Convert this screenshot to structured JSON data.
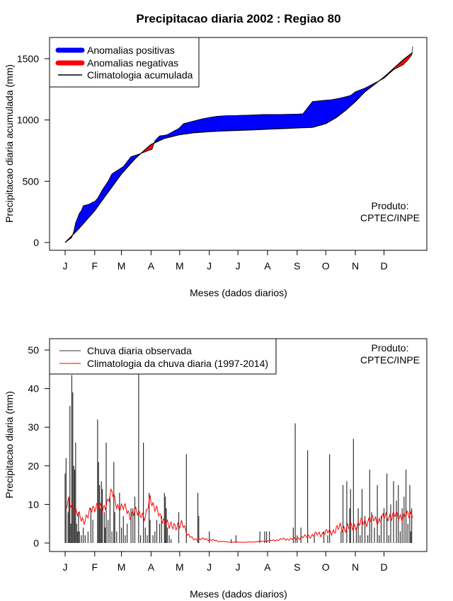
{
  "title": "Precipitacao diaria 2002 : Regiao 80",
  "colors": {
    "positive": "#0000FF",
    "negative": "#FF0000",
    "climatology_line": "#000000",
    "observed_bars": "#333333",
    "clim_daily": "#FF0000"
  },
  "chart_data": [
    {
      "type": "area",
      "name": "cumulative",
      "title": "Precipitacao diaria 2002 : Regiao 80",
      "xlabel": "Meses (dados diarios)",
      "ylabel": "Precipitacao diaria acumulada (mm)",
      "xlim": [
        1,
        365
      ],
      "ylim": [
        0,
        1600
      ],
      "yticks": [
        0,
        500,
        1000,
        1500
      ],
      "month_labels": [
        "J",
        "F",
        "M",
        "A",
        "M",
        "J",
        "J",
        "A",
        "S",
        "O",
        "N",
        "D"
      ],
      "month_positions": [
        1,
        32,
        60,
        91,
        121,
        152,
        182,
        213,
        244,
        274,
        305,
        335
      ],
      "legend": [
        "Anomalias positivas",
        "Anomalias negativas",
        "Climatologia acumulada"
      ],
      "annotation": [
        "Produto:",
        "CPTEC/INPE"
      ],
      "series": [
        {
          "name": "Climatologia acumulada",
          "x": [
            1,
            15,
            32,
            45,
            60,
            75,
            91,
            105,
            121,
            135,
            152,
            165,
            182,
            200,
            213,
            230,
            244,
            260,
            274,
            285,
            295,
            305,
            315,
            325,
            335,
            345,
            355,
            365
          ],
          "values": [
            0,
            110,
            260,
            400,
            560,
            690,
            800,
            850,
            880,
            895,
            905,
            910,
            915,
            920,
            925,
            930,
            935,
            940,
            970,
            1020,
            1080,
            1150,
            1230,
            1290,
            1350,
            1420,
            1490,
            1550
          ]
        },
        {
          "name": "Acumulado observado 2002",
          "x": [
            1,
            8,
            10,
            12,
            16,
            18,
            20,
            25,
            28,
            30,
            32,
            35,
            40,
            46,
            50,
            58,
            62,
            66,
            70,
            78,
            85,
            88,
            92,
            95,
            100,
            105,
            108,
            115,
            120,
            125,
            135,
            145,
            152,
            160,
            170,
            180,
            182,
            195,
            210,
            225,
            240,
            250,
            255,
            260,
            272,
            280,
            290,
            300,
            305,
            315,
            325,
            335,
            345,
            355,
            360,
            364,
            365
          ],
          "values": [
            0,
            40,
            90,
            160,
            240,
            260,
            300,
            310,
            320,
            330,
            335,
            360,
            430,
            500,
            560,
            600,
            620,
            660,
            700,
            720,
            740,
            750,
            760,
            830,
            870,
            875,
            880,
            910,
            930,
            970,
            990,
            1010,
            1020,
            1030,
            1035,
            1035,
            1037,
            1040,
            1045,
            1045,
            1047,
            1050,
            1100,
            1150,
            1160,
            1165,
            1180,
            1200,
            1230,
            1260,
            1300,
            1340,
            1410,
            1450,
            1490,
            1530,
            1600
          ]
        }
      ]
    },
    {
      "type": "bar",
      "name": "daily",
      "xlabel": "Meses (dados diarios)",
      "ylabel": "Precipitacao diaria (mm)",
      "xlim": [
        1,
        365
      ],
      "ylim": [
        0,
        50
      ],
      "yticks": [
        0,
        10,
        20,
        30,
        40,
        50
      ],
      "month_labels": [
        "J",
        "F",
        "M",
        "A",
        "M",
        "J",
        "J",
        "A",
        "S",
        "O",
        "N",
        "D"
      ],
      "month_positions": [
        1,
        32,
        60,
        91,
        121,
        152,
        182,
        213,
        244,
        274,
        305,
        335
      ],
      "legend": [
        "Chuva diaria observada",
        "Climatologia da chuva diaria (1997-2014)"
      ],
      "annotation": [
        "Produto:",
        "CPTEC/INPE"
      ],
      "observed": {
        "name": "Chuva diaria observada",
        "days": [
          1,
          2,
          4,
          5,
          6,
          7,
          8,
          9,
          10,
          11,
          12,
          13,
          14,
          15,
          16,
          18,
          20,
          22,
          25,
          28,
          30,
          35,
          36,
          37,
          38,
          39,
          40,
          42,
          43,
          44,
          46,
          48,
          50,
          52,
          53,
          55,
          58,
          60,
          62,
          64,
          66,
          70,
          72,
          74,
          78,
          80,
          83,
          85,
          87,
          89,
          90,
          93,
          95,
          97,
          100,
          102,
          105,
          106,
          107,
          108,
          110,
          112,
          120,
          128,
          140,
          141,
          152,
          175,
          180,
          205,
          210,
          212,
          215,
          240,
          242,
          244,
          248,
          255,
          262,
          272,
          276,
          278,
          290,
          292,
          296,
          299,
          300,
          303,
          306,
          308,
          310,
          312,
          315,
          318,
          320,
          322,
          325,
          328,
          330,
          332,
          335,
          338,
          340,
          342,
          345,
          348,
          350,
          352,
          354,
          356,
          358,
          360,
          362,
          363,
          364
        ],
        "values": [
          18,
          22,
          8,
          12,
          35.5,
          5,
          43.5,
          39,
          20,
          19,
          26,
          5,
          3,
          8,
          3,
          2,
          4,
          2,
          3,
          9,
          6,
          32,
          21,
          15,
          9,
          16,
          14,
          8,
          4,
          26,
          6,
          12,
          3,
          21,
          8,
          3,
          13,
          4,
          7,
          2,
          5,
          9,
          9,
          12,
          44,
          2,
          26,
          4,
          2,
          13,
          6,
          2,
          3,
          6,
          5,
          7,
          13,
          12,
          9,
          4,
          2,
          1,
          8,
          23,
          13,
          7,
          3,
          1,
          2,
          3,
          3,
          3,
          3,
          4,
          31,
          2,
          4,
          24,
          2,
          3,
          2,
          23,
          3,
          15,
          16,
          9,
          14,
          27,
          4,
          9,
          2,
          14,
          7,
          2,
          19,
          8,
          4,
          15,
          2,
          7,
          9,
          18,
          2,
          10,
          16,
          11,
          15,
          3,
          9,
          12,
          19,
          5,
          15,
          3,
          9
        ]
      },
      "climatology": {
        "name": "Climatologia da chuva diaria (1997-2014)",
        "days": [
          1,
          5,
          10,
          15,
          20,
          25,
          30,
          35,
          40,
          45,
          50,
          55,
          60,
          65,
          70,
          75,
          80,
          85,
          90,
          95,
          100,
          105,
          110,
          115,
          120,
          125,
          130,
          135,
          140,
          150,
          160,
          170,
          180,
          190,
          200,
          210,
          220,
          230,
          240,
          250,
          260,
          270,
          280,
          290,
          300,
          310,
          320,
          330,
          340,
          350,
          360,
          365
        ],
        "values": [
          8,
          11,
          9,
          7,
          6,
          7,
          9,
          10,
          8,
          11,
          13,
          10,
          9,
          9,
          7,
          8,
          8,
          6,
          12,
          9,
          7,
          6,
          4,
          5,
          4,
          5,
          2,
          1,
          1,
          1,
          0.5,
          0.3,
          0.2,
          0.2,
          0.3,
          0.5,
          0.7,
          1,
          1,
          1.5,
          2,
          2.5,
          3,
          4,
          4,
          5,
          6,
          6,
          7,
          7,
          7,
          8
        ]
      }
    }
  ]
}
